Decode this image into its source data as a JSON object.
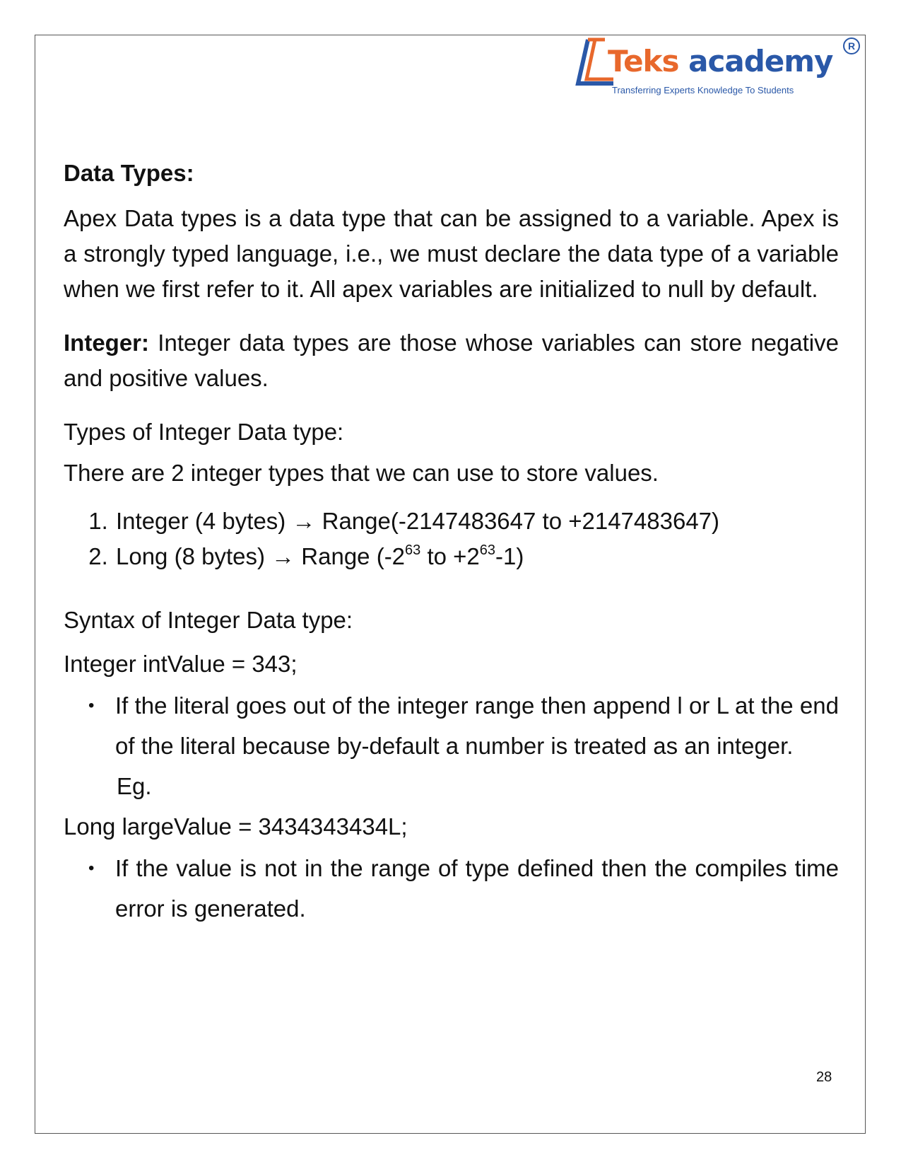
{
  "logo": {
    "brand_part1": "Teks",
    "brand_part2": " academy",
    "tagline": "Transferring Experts Knowledge To Students",
    "registered_mark": "R",
    "colors": {
      "orange": "#e8682c",
      "blue": "#2a58a8"
    }
  },
  "heading": "Data Types:",
  "intro": "Apex Data types is a data type that can be assigned to a variable. Apex is a strongly typed language, i.e., we must declare the data type of a variable when we first refer to it. All apex variables are initialized to null by default.",
  "integer_section": {
    "label": "Integer:",
    "text": " Integer data types are those whose variables can store negative and positive values."
  },
  "types_heading": "Types of Integer Data type:",
  "types_intro": "There are 2 integer types that we can use to store values.",
  "type_list": {
    "item1": "Integer (4 bytes) → Range(-2147483647 to +2147483647)",
    "item2_prefix": "Long (8 bytes) → Range (-2",
    "item2_exp1": "63",
    "item2_mid": " to +2",
    "item2_exp2": "63",
    "item2_suffix": "-1)"
  },
  "syntax_heading": "Syntax of Integer Data type:",
  "code_int": "Integer intValue = 343;",
  "note1": "If the literal goes out of the integer range then append l or L at the end of the literal because by-default a number is treated as an integer.",
  "eg_label": "Eg.",
  "code_long": "Long largeValue = 3434343434L;",
  "note2": "If the value is not in the range of type defined then the compiles time error is generated.",
  "bullet_symbol": "•",
  "page_number": "28"
}
